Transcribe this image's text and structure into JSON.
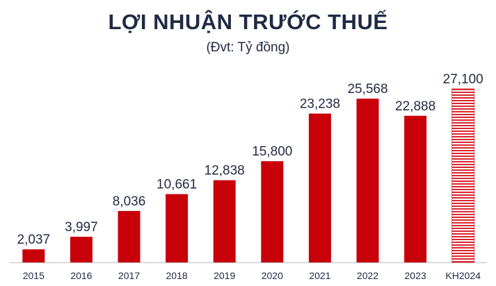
{
  "chart_data": {
    "type": "bar",
    "title": "LỢI NHUẬN TRƯỚC THUẾ",
    "subtitle": "(Đvt: Tỷ đồng)",
    "categories": [
      "2015",
      "2016",
      "2017",
      "2018",
      "2019",
      "2020",
      "2021",
      "2022",
      "2023",
      "KH2024"
    ],
    "values": [
      2037,
      3997,
      8036,
      10661,
      12838,
      15800,
      23238,
      25568,
      22888,
      27100
    ],
    "value_labels": [
      "2,037",
      "3,997",
      "8,036",
      "10,661",
      "12,838",
      "15,800",
      "23,238",
      "25,568",
      "22,888",
      "27,100"
    ],
    "ylim": [
      0,
      31000
    ],
    "grid": false,
    "bar_color": "#c8000a",
    "plan_bar_style": "horizontal-striped",
    "plan_bar_color": "#d9262e"
  }
}
